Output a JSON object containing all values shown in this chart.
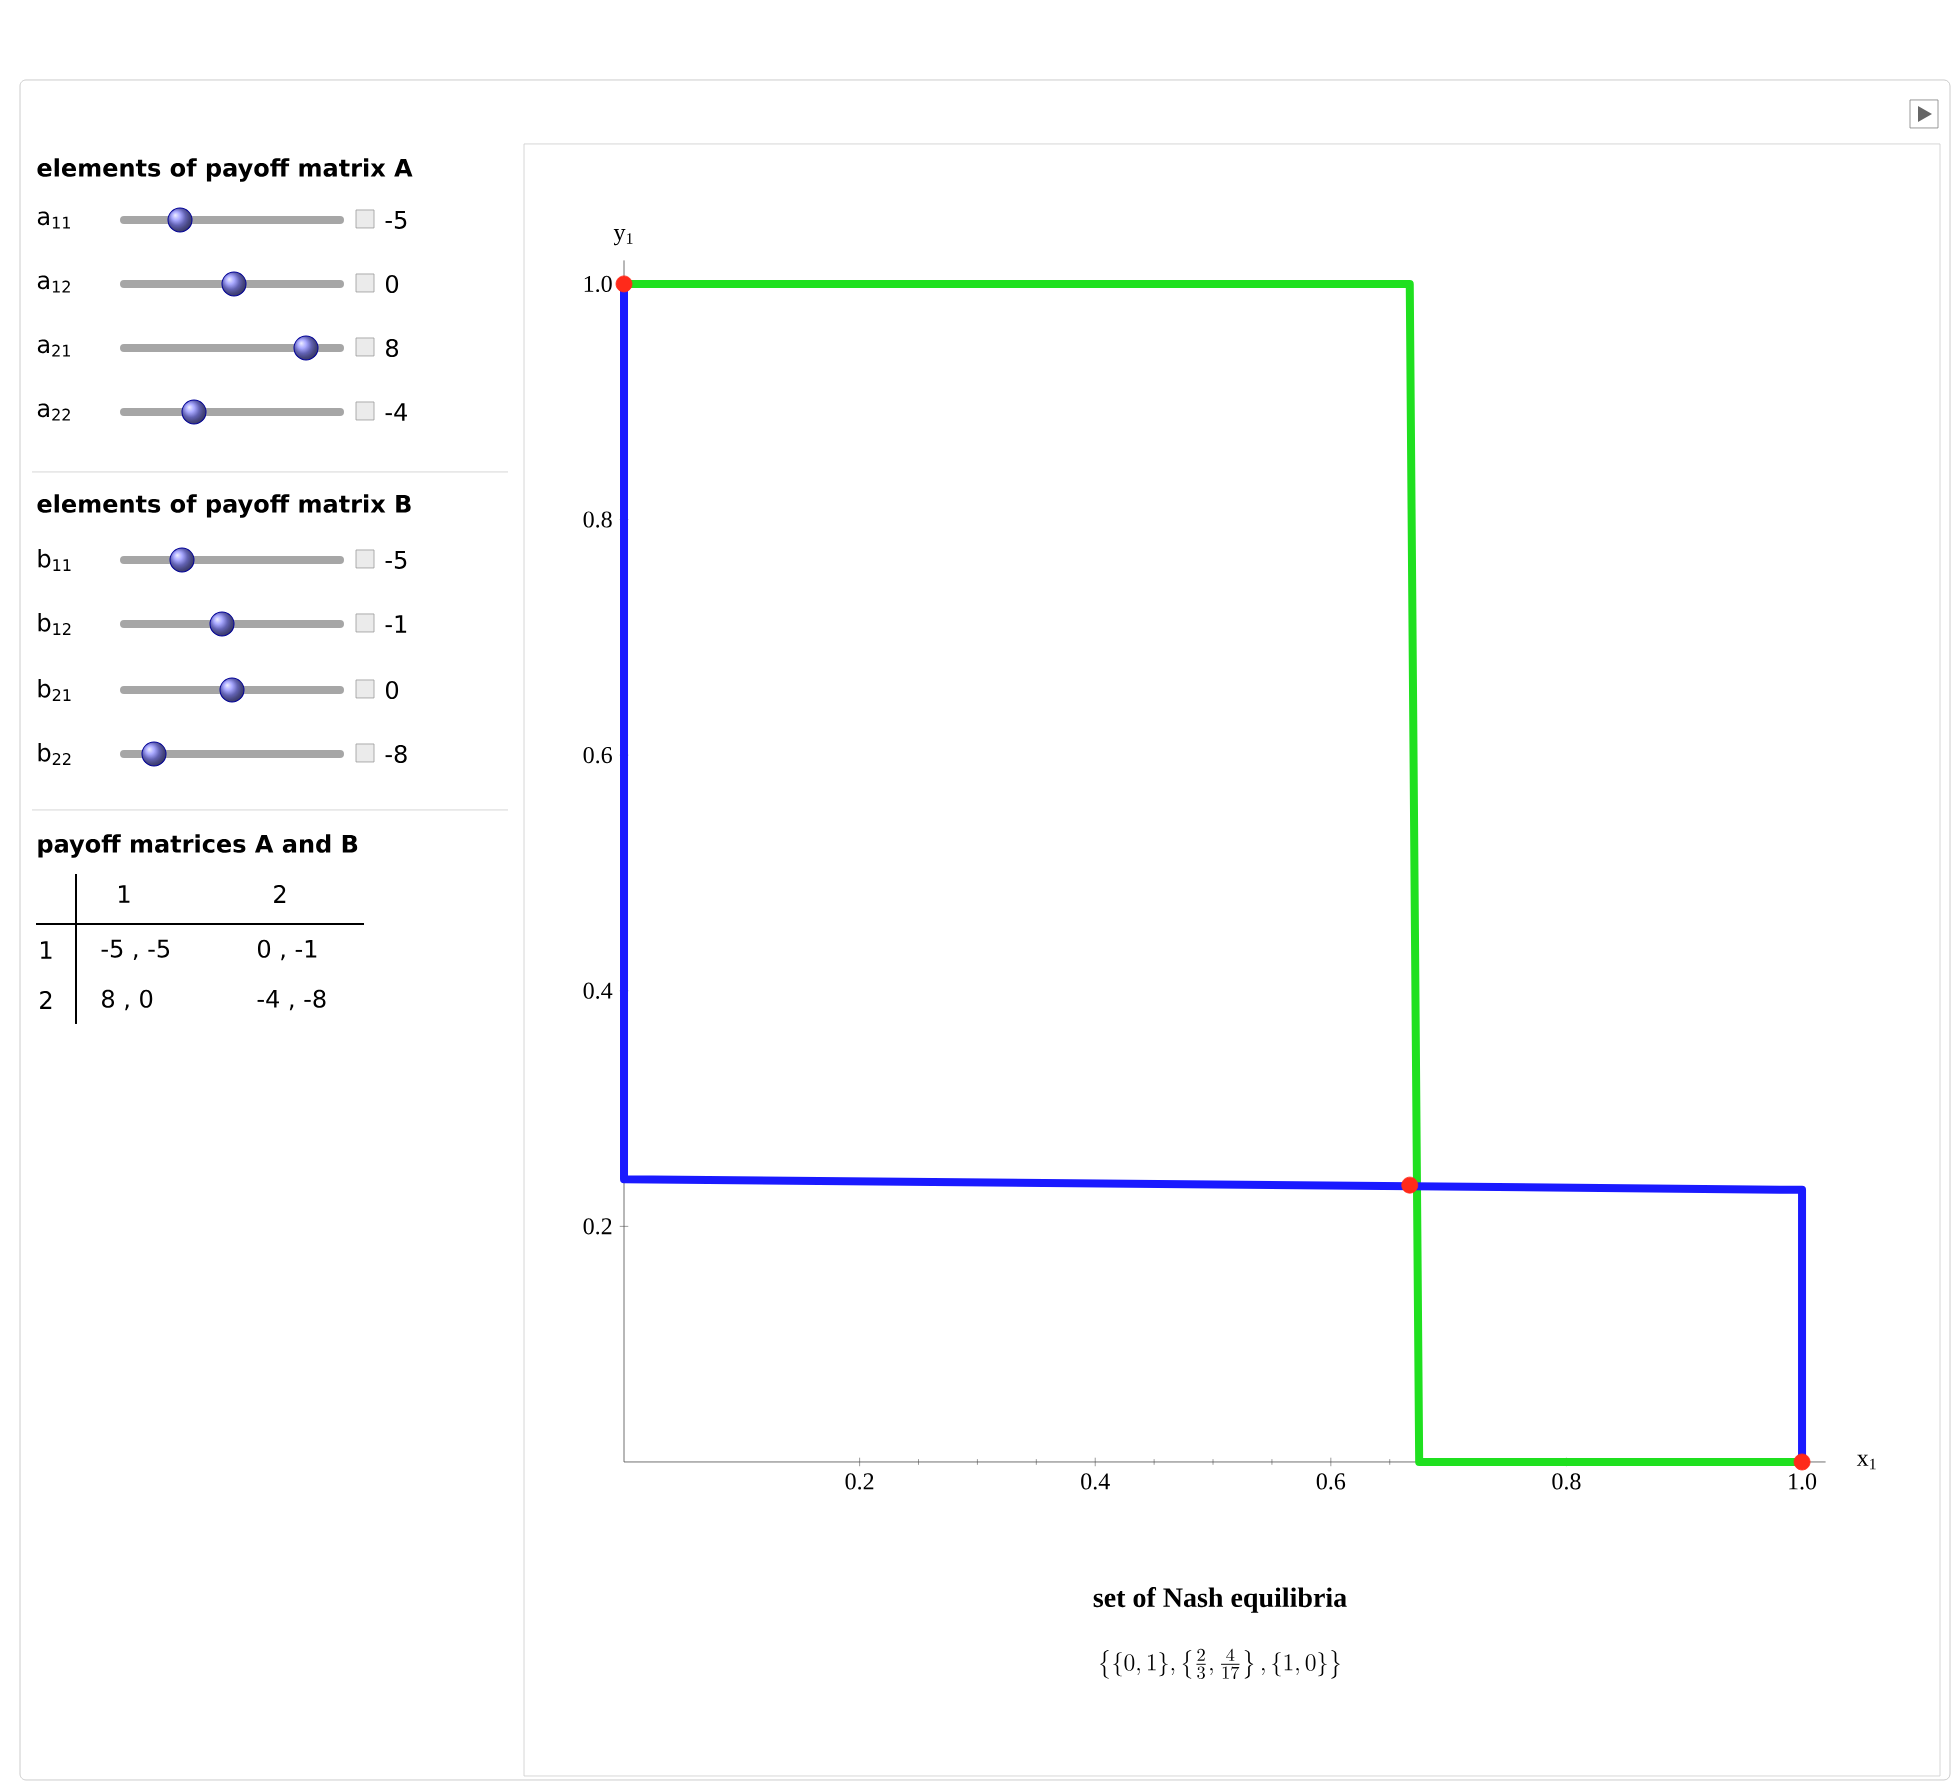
{
  "chart_data": [
    {
      "type": "other",
      "annotations": [
        "elements of payoff matrix A",
        "a$_{11}$",
        "-5",
        "a$_{12}$",
        "0",
        "a$_{21}$",
        "8",
        "a$_{22}$",
        "-4",
        "elements of payoff matrix B",
        "b$_{11}$",
        "-5",
        "b$_{12}$",
        "-1",
        "b$_{21}$",
        "0",
        "b$_{22}$",
        "-8",
        "payoff matrices A and B",
        "1",
        "2",
        "1",
        "-5 , -5",
        "0 , -1",
        "2",
        "8 , 0",
        "-4 , -8"
      ]
    },
    {
      "type": "line",
      "xlabel": "x$_{1}$",
      "ylabel": "y$_{1}$",
      "xlim": [
        0,
        1.02
      ],
      "ylim": [
        0,
        1.02
      ],
      "xticks": [
        0.2,
        0.4,
        0.6,
        0.8,
        {
          "value": 1,
          "label": "1.0"
        }
      ],
      "yticks": [
        0.2,
        0.4,
        0.6,
        0.8,
        {
          "value": 1,
          "label": "1.0"
        }
      ],
      "marker": "none",
      "grid": false,
      "series": [
        {
          "color": "#1fe01f",
          "x": [
            0,
            0.667,
            0.675,
            1
          ],
          "values": [
            1,
            1,
            0,
            0
          ]
        },
        {
          "color": "#1a1aff",
          "x": [
            0,
            0,
            1,
            1
          ],
          "values": [
            1,
            0.24,
            0.231,
            0
          ]
        },
        {
          "type": "scatter",
          "marker": "circle",
          "color": "#ff2a1a",
          "x": [
            0,
            0.667,
            1
          ],
          "values": [
            1,
            0.235,
            0
          ]
        }
      ],
      "annotations": [
        "set of Nash equilibria",
        "\\left\\{\\{0, 1\\}, \\left\\{\\frac{2}{3}, \\frac{4}{17}\\right\\}, \\{1, 0\\}\\right\\}"
      ]
    }
  ]
}
